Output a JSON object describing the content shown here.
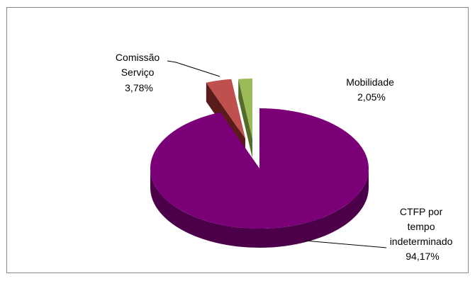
{
  "chart_data": {
    "type": "pie",
    "style": "3d-exploded",
    "title": "",
    "slices": [
      {
        "label_lines": [
          "CTFP por",
          "tempo",
          "indeterminado"
        ],
        "value_text": "94,17%",
        "value": 94.17,
        "color": "#7b0077",
        "side_color": "#4c0049"
      },
      {
        "label_lines": [
          "Comissão",
          "Serviço"
        ],
        "value_text": "3,78%",
        "value": 3.78,
        "color": "#c0504d",
        "side_color": "#5a1c1b"
      },
      {
        "label_lines": [
          "Mobilidade"
        ],
        "value_text": "2,05%",
        "value": 2.05,
        "color": "#9bbb59",
        "side_color": "#546b2a"
      }
    ]
  }
}
